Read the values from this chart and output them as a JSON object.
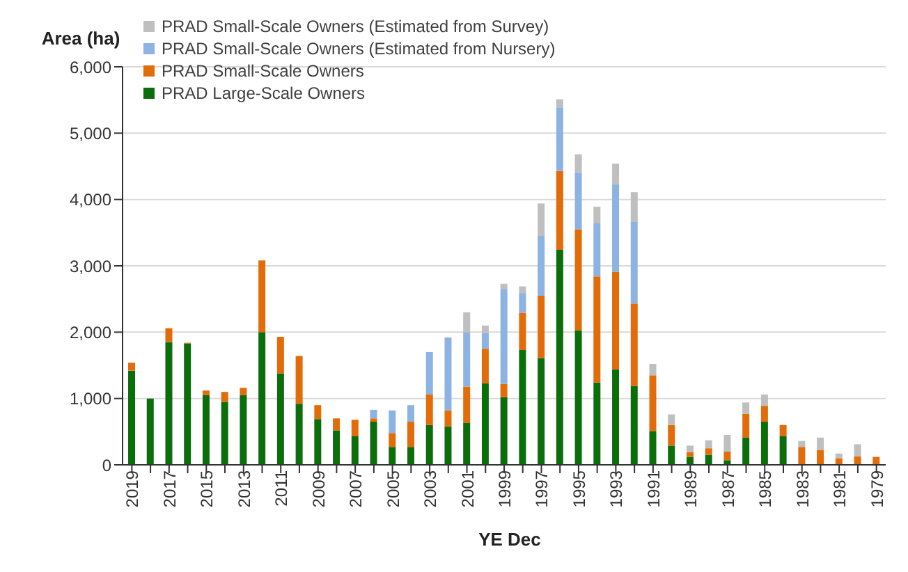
{
  "chart_data": {
    "type": "bar",
    "stacked": true,
    "xlabel": "YE Dec",
    "ylabel": "Area (ha)",
    "categories": [
      "2019",
      null,
      "2017",
      null,
      "2015",
      null,
      "2013",
      null,
      "2011",
      null,
      "2009",
      null,
      "2007",
      null,
      "2005",
      null,
      "2003",
      null,
      "2001",
      null,
      "1999",
      null,
      "1997",
      null,
      "1995",
      null,
      "1993",
      null,
      "1991",
      null,
      "1989",
      null,
      "1987",
      null,
      "1985",
      null,
      "1983",
      null,
      "1981",
      null,
      "1979"
    ],
    "series": [
      {
        "name": "PRAD Large-Scale Owners",
        "color": "#0b6e0b",
        "values": [
          1420,
          1000,
          1850,
          1830,
          1050,
          950,
          1050,
          2000,
          1380,
          920,
          690,
          520,
          430,
          650,
          270,
          270,
          600,
          580,
          630,
          1230,
          1020,
          1730,
          1610,
          3240,
          2030,
          1240,
          1440,
          1190,
          510,
          290,
          120,
          150,
          70,
          410,
          650,
          430,
          0,
          0,
          0,
          0,
          0
        ]
      },
      {
        "name": "PRAD Small-Scale Owners",
        "color": "#e36c0a",
        "values": [
          120,
          0,
          210,
          10,
          70,
          150,
          110,
          1080,
          550,
          720,
          210,
          180,
          250,
          50,
          210,
          380,
          460,
          240,
          550,
          520,
          200,
          560,
          940,
          1190,
          1520,
          1600,
          1470,
          1240,
          840,
          310,
          70,
          100,
          130,
          360,
          240,
          170,
          270,
          220,
          100,
          130,
          120
        ]
      },
      {
        "name": "PRAD Small-Scale Owners (Estimated from Nursery)",
        "color": "#8db3e2",
        "values": [
          0,
          0,
          0,
          0,
          0,
          0,
          0,
          0,
          0,
          0,
          0,
          0,
          0,
          130,
          340,
          250,
          640,
          1100,
          820,
          240,
          1430,
          300,
          900,
          960,
          860,
          800,
          1320,
          1230,
          0,
          0,
          0,
          0,
          0,
          0,
          0,
          0,
          0,
          0,
          0,
          0,
          0
        ]
      },
      {
        "name": "PRAD Small-Scale Owners (Estimated from Survey)",
        "color": "#bfbfbf",
        "values": [
          0,
          0,
          0,
          0,
          0,
          0,
          0,
          0,
          0,
          0,
          0,
          0,
          0,
          0,
          0,
          0,
          0,
          0,
          300,
          110,
          80,
          100,
          490,
          120,
          270,
          250,
          310,
          450,
          170,
          160,
          100,
          120,
          250,
          170,
          170,
          0,
          90,
          190,
          70,
          180,
          0
        ]
      }
    ],
    "ylim": [
      0,
      6000
    ],
    "yticks": [
      0,
      {
        "value": 1000,
        "label": "1,000"
      },
      {
        "value": 2000,
        "label": "2,000"
      },
      {
        "value": 3000,
        "label": "3,000"
      },
      {
        "value": 4000,
        "label": "4,000"
      },
      {
        "value": 5000,
        "label": "5,000"
      },
      {
        "value": 6000,
        "label": "6,000"
      }
    ],
    "grid": "y",
    "legend": "top left"
  }
}
